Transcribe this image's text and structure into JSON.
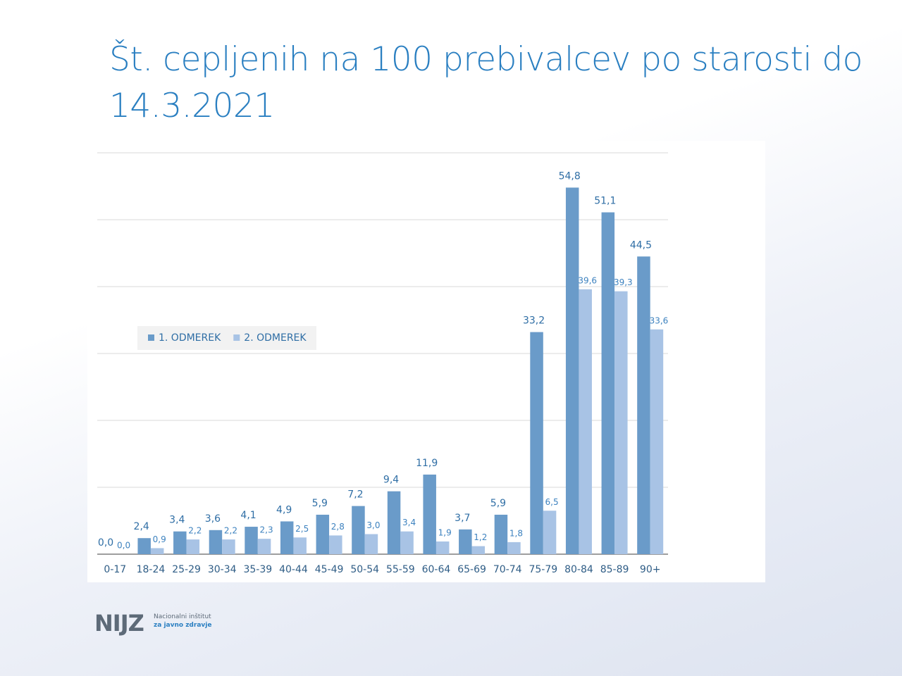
{
  "chart_data": {
    "type": "bar",
    "title": "Št. cepljenih na 100 prebivalcev po starosti do 14.3.2021",
    "categories": [
      "0-17",
      "18-24",
      "25-29",
      "30-34",
      "35-39",
      "40-44",
      "45-49",
      "50-54",
      "55-59",
      "60-64",
      "65-69",
      "70-74",
      "75-79",
      "80-84",
      "85-89",
      "90+"
    ],
    "series": [
      {
        "name": "1. ODMEREK",
        "color": "#6a9bc9",
        "values": [
          0.0,
          2.4,
          3.4,
          3.6,
          4.1,
          4.9,
          5.9,
          7.2,
          9.4,
          11.9,
          3.7,
          5.9,
          33.2,
          54.8,
          51.1,
          44.5
        ],
        "value_labels": [
          "0,0",
          "2,4",
          "3,4",
          "3,6",
          "4,1",
          "4,9",
          "5,9",
          "7,2",
          "9,4",
          "11,9",
          "3,7",
          "5,9",
          "33,2",
          "54,8",
          "51,1",
          "44,5"
        ]
      },
      {
        "name": "2. ODMEREK",
        "color": "#a8c3e5",
        "values": [
          0.0,
          0.9,
          2.2,
          2.2,
          2.3,
          2.5,
          2.8,
          3.0,
          3.4,
          1.9,
          1.2,
          1.8,
          6.5,
          39.6,
          39.3,
          33.6
        ],
        "value_labels": [
          "0,0",
          "0,9",
          "2,2",
          "2,2",
          "2,3",
          "2,5",
          "2,8",
          "3,0",
          "3,4",
          "1,9",
          "1,2",
          "1,8",
          "6,5",
          "39,6",
          "39,3",
          "33,6"
        ]
      }
    ],
    "ylim": [
      0,
      60
    ],
    "yticks": [
      0,
      10,
      20,
      30,
      40,
      50,
      60
    ],
    "show_tick_labels": false,
    "grid": true,
    "legend": "left"
  },
  "logo": {
    "name": "NIJZ",
    "line1": "Nacionalni inštitut",
    "line2": "za javno zdravje"
  }
}
